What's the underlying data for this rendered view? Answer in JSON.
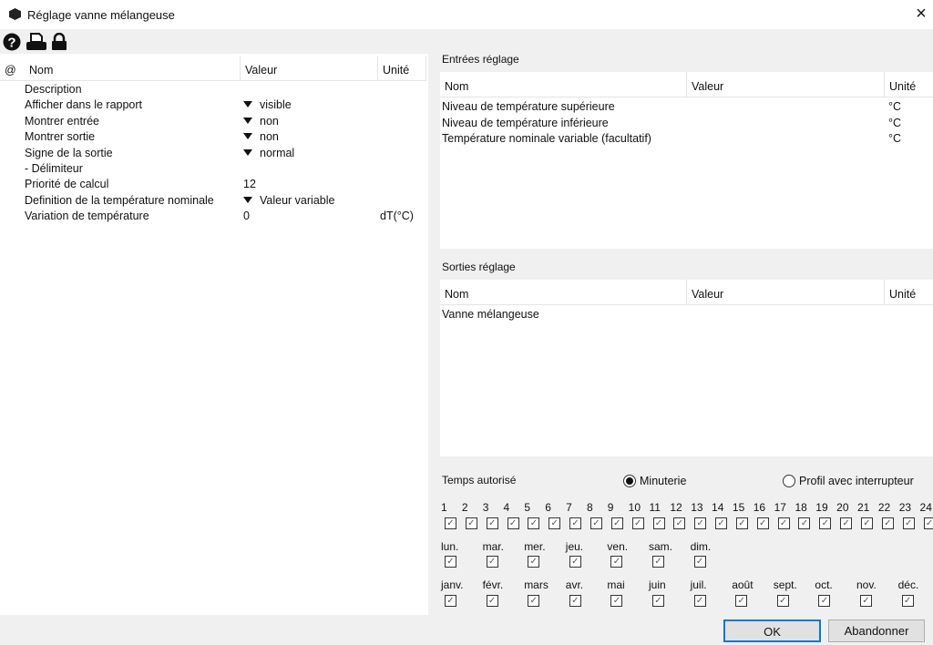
{
  "window": {
    "title": "Réglage vanne mélangeuse",
    "close_icon": "×"
  },
  "toolbar": {
    "icons": [
      "help-icon",
      "print-icon",
      "lock-icon"
    ]
  },
  "params": {
    "headers": {
      "at": "@",
      "name": "Nom",
      "value": "Valeur",
      "unit": "Unité"
    },
    "rows": [
      {
        "name": "Description",
        "value": "",
        "unit": "",
        "dropdown": false
      },
      {
        "name": "Afficher dans le rapport",
        "value": "visible",
        "unit": "",
        "dropdown": true
      },
      {
        "name": "Montrer entrée",
        "value": "non",
        "unit": "",
        "dropdown": true
      },
      {
        "name": "Montrer sortie",
        "value": "non",
        "unit": "",
        "dropdown": true
      },
      {
        "name": "Signe de la sortie",
        "value": "normal",
        "unit": "",
        "dropdown": true
      },
      {
        "name": "- Délimiteur",
        "value": "",
        "unit": "",
        "dropdown": false
      },
      {
        "name": "Priorité de calcul",
        "value": "12",
        "unit": "",
        "dropdown": false
      },
      {
        "name": "Definition de la température nominale",
        "value": "Valeur variable",
        "unit": "",
        "dropdown": true
      },
      {
        "name": "Variation de température",
        "value": "0",
        "unit": "dT(°C)",
        "dropdown": false
      }
    ]
  },
  "inputs": {
    "title": "Entrées réglage",
    "headers": {
      "name": "Nom",
      "value": "Valeur",
      "unit": "Unité"
    },
    "rows": [
      {
        "name": "Niveau de température supérieure",
        "value": "",
        "unit": "°C"
      },
      {
        "name": "Niveau de température inférieure",
        "value": "",
        "unit": "°C"
      },
      {
        "name": "Température nominale variable (facultatif)",
        "value": "",
        "unit": "°C"
      }
    ]
  },
  "outputs": {
    "title": "Sorties réglage",
    "headers": {
      "name": "Nom",
      "value": "Valeur",
      "unit": "Unité"
    },
    "rows": [
      {
        "name": "Vanne mélangeuse",
        "value": "",
        "unit": ""
      }
    ]
  },
  "schedule": {
    "title": "Temps autorisé",
    "modes": [
      {
        "label": "Minuterie",
        "selected": true
      },
      {
        "label": "Profil avec interrupteur",
        "selected": false
      }
    ],
    "hours": [
      "1",
      "2",
      "3",
      "4",
      "5",
      "6",
      "7",
      "8",
      "9",
      "10",
      "11",
      "12",
      "13",
      "14",
      "15",
      "16",
      "17",
      "18",
      "19",
      "20",
      "21",
      "22",
      "23",
      "24"
    ],
    "days": [
      "lun.",
      "mar.",
      "mer.",
      "jeu.",
      "ven.",
      "sam.",
      "dim."
    ],
    "months": [
      "janv.",
      "févr.",
      "mars",
      "avr.",
      "mai",
      "juin",
      "juil.",
      "août",
      "sept.",
      "oct.",
      "nov.",
      "déc."
    ],
    "all_checked": true
  },
  "buttons": {
    "ok": "OK",
    "cancel": "Abandonner"
  }
}
